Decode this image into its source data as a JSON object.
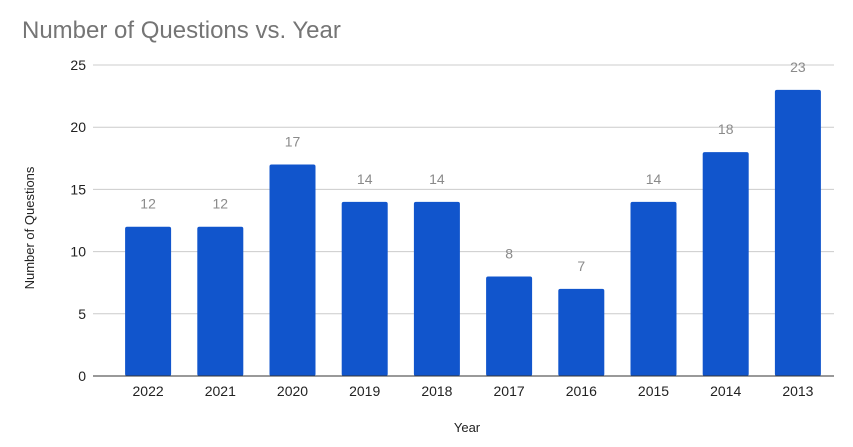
{
  "chart_data": {
    "type": "bar",
    "title": "Number of Questions vs. Year",
    "xlabel": "Year",
    "ylabel": "Number of Questions",
    "categories": [
      "2022",
      "2021",
      "2020",
      "2019",
      "2018",
      "2017",
      "2016",
      "2015",
      "2014",
      "2013"
    ],
    "values": [
      12,
      12,
      17,
      14,
      14,
      8,
      7,
      14,
      18,
      23
    ],
    "ylim": [
      0,
      25
    ],
    "yticks": [
      "0",
      "5",
      "10",
      "15",
      "20",
      "25"
    ],
    "data_labels": [
      "12",
      "12",
      "17",
      "14",
      "14",
      "8",
      "7",
      "14",
      "18",
      "23"
    ],
    "grid": true,
    "legend": "none",
    "bar_color": "#1155cc"
  }
}
